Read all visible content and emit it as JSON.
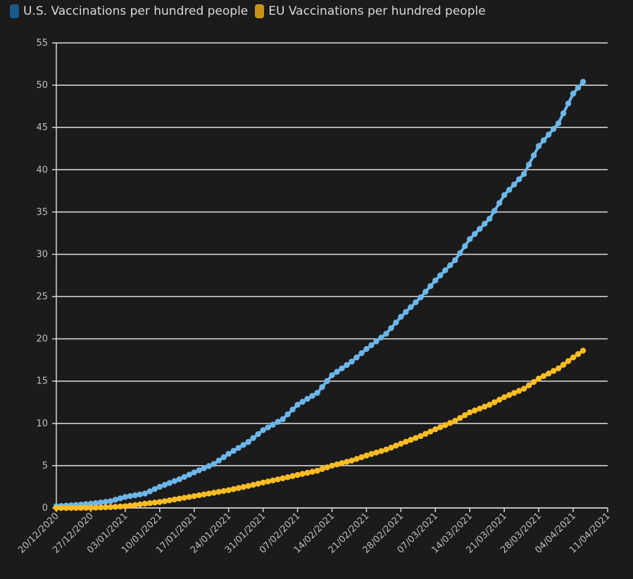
{
  "legend": {
    "items": [
      {
        "label": "U.S. Vaccinations per hundred people",
        "color": "#1a5a8c"
      },
      {
        "label": "EU Vaccinations per hundred people",
        "color": "#c8921a"
      }
    ]
  },
  "chart_data": {
    "type": "line",
    "title": "",
    "xlabel": "",
    "ylabel": "",
    "x_range": [
      "2020-12-20",
      "2021-04-11"
    ],
    "ylim": [
      0,
      55
    ],
    "y_ticks": [
      0,
      5,
      10,
      15,
      20,
      25,
      30,
      35,
      40,
      45,
      50,
      55
    ],
    "x_ticks": [
      "20/12/2020",
      "27/12/2020",
      "03/01/2021",
      "10/01/2021",
      "17/01/2021",
      "24/01/2021",
      "31/01/2021",
      "07/02/2021",
      "14/02/2021",
      "21/02/2021",
      "28/02/2021",
      "07/03/2021",
      "14/03/2021",
      "21/03/2021",
      "28/03/2021",
      "04/04/2021",
      "11/04/2021"
    ],
    "grid": true,
    "legend_position": "top-left",
    "line_colors": [
      "#6cb6e8",
      "#fbbd23"
    ],
    "series": [
      {
        "name": "U.S. Vaccinations per hundred people",
        "points": [
          [
            "2020-12-20",
            0.2
          ],
          [
            "2020-12-24",
            0.35
          ],
          [
            "2020-12-27",
            0.5
          ],
          [
            "2020-12-31",
            0.8
          ],
          [
            "2021-01-03",
            1.3
          ],
          [
            "2021-01-07",
            1.7
          ],
          [
            "2021-01-10",
            2.5
          ],
          [
            "2021-01-14",
            3.4
          ],
          [
            "2021-01-17",
            4.2
          ],
          [
            "2021-01-21",
            5.2
          ],
          [
            "2021-01-24",
            6.4
          ],
          [
            "2021-01-28",
            7.8
          ],
          [
            "2021-01-31",
            9.2
          ],
          [
            "2021-02-04",
            10.5
          ],
          [
            "2021-02-07",
            12.2
          ],
          [
            "2021-02-11",
            13.6
          ],
          [
            "2021-02-14",
            15.7
          ],
          [
            "2021-02-18",
            17.3
          ],
          [
            "2021-02-21",
            18.8
          ],
          [
            "2021-02-25",
            20.6
          ],
          [
            "2021-02-28",
            22.6
          ],
          [
            "2021-03-04",
            24.9
          ],
          [
            "2021-03-07",
            26.9
          ],
          [
            "2021-03-11",
            29.3
          ],
          [
            "2021-03-14",
            31.8
          ],
          [
            "2021-03-18",
            34.2
          ],
          [
            "2021-03-21",
            37.0
          ],
          [
            "2021-03-25",
            39.5
          ],
          [
            "2021-03-28",
            42.8
          ],
          [
            "2021-04-01",
            45.5
          ],
          [
            "2021-04-04",
            49.0
          ],
          [
            "2021-04-06",
            50.4
          ]
        ]
      },
      {
        "name": "EU Vaccinations per hundred people",
        "points": [
          [
            "2020-12-20",
            0.0
          ],
          [
            "2020-12-24",
            0.0
          ],
          [
            "2020-12-27",
            0.02
          ],
          [
            "2020-12-31",
            0.1
          ],
          [
            "2021-01-03",
            0.2
          ],
          [
            "2021-01-07",
            0.5
          ],
          [
            "2021-01-10",
            0.7
          ],
          [
            "2021-01-14",
            1.1
          ],
          [
            "2021-01-17",
            1.4
          ],
          [
            "2021-01-21",
            1.8
          ],
          [
            "2021-01-24",
            2.1
          ],
          [
            "2021-01-28",
            2.6
          ],
          [
            "2021-01-31",
            3.0
          ],
          [
            "2021-02-04",
            3.5
          ],
          [
            "2021-02-07",
            3.9
          ],
          [
            "2021-02-11",
            4.4
          ],
          [
            "2021-02-14",
            5.0
          ],
          [
            "2021-02-18",
            5.6
          ],
          [
            "2021-02-21",
            6.2
          ],
          [
            "2021-02-25",
            6.9
          ],
          [
            "2021-02-28",
            7.6
          ],
          [
            "2021-03-04",
            8.5
          ],
          [
            "2021-03-07",
            9.3
          ],
          [
            "2021-03-11",
            10.3
          ],
          [
            "2021-03-14",
            11.3
          ],
          [
            "2021-03-18",
            12.2
          ],
          [
            "2021-03-21",
            13.1
          ],
          [
            "2021-03-25",
            14.1
          ],
          [
            "2021-03-28",
            15.3
          ],
          [
            "2021-04-01",
            16.5
          ],
          [
            "2021-04-04",
            17.8
          ],
          [
            "2021-04-06",
            18.6
          ]
        ]
      }
    ]
  }
}
